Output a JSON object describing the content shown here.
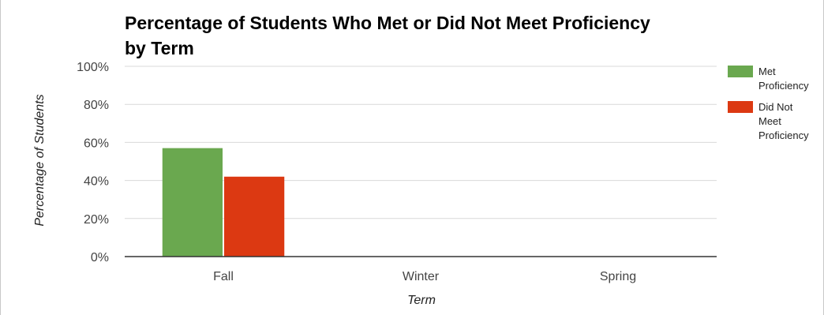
{
  "chart_data": {
    "type": "bar",
    "title": "Percentage of Students Who Met or Did Not Meet Proficiency by Term",
    "title_lines": [
      "Percentage of Students Who Met or Did Not Meet Proficiency",
      "by Term"
    ],
    "xlabel": "Term",
    "ylabel": "Percentage of Students",
    "categories": [
      "Fall",
      "Winter",
      "Spring"
    ],
    "ylim": [
      0,
      100
    ],
    "yticks": [
      0,
      20,
      40,
      60,
      80,
      100
    ],
    "ytick_labels": [
      "0%",
      "20%",
      "40%",
      "60%",
      "80%",
      "100%"
    ],
    "grid": true,
    "legend_position": "right",
    "series": [
      {
        "name": "Met Proficiency",
        "legend_lines": [
          "Met",
          "Proficiency"
        ],
        "color": "#6aa84f",
        "values": [
          57,
          null,
          null
        ]
      },
      {
        "name": "Did Not Meet Proficiency",
        "legend_lines": [
          "Did Not",
          "Meet",
          "Proficiency"
        ],
        "color": "#dc3912",
        "values": [
          42,
          null,
          null
        ]
      }
    ],
    "colors": {
      "gridline": "#d9d9d9",
      "baseline": "#333333"
    }
  }
}
